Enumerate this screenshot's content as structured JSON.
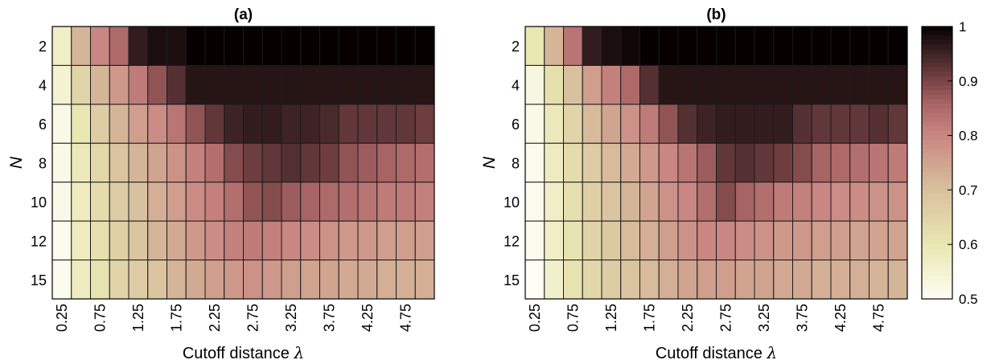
{
  "chart_data": [
    {
      "type": "heatmap",
      "title": "(a)",
      "xlabel_text": "Cutoff distance ",
      "xlabel_symbol": "λ",
      "ylabel": "N",
      "x_tick_labels": [
        "0.25",
        "0.75",
        "1.25",
        "1.75",
        "2.25",
        "2.75",
        "3.25",
        "3.75",
        "4.25",
        "4.75"
      ],
      "y_tick_labels": [
        "2",
        "4",
        "6",
        "8",
        "10",
        "12",
        "15"
      ],
      "x": [
        0.25,
        0.5,
        0.75,
        1.0,
        1.25,
        1.5,
        1.75,
        2.0,
        2.25,
        2.5,
        2.75,
        3.0,
        3.25,
        3.5,
        3.75,
        4.0,
        4.25,
        4.5,
        4.75,
        5.0
      ],
      "y": [
        2,
        4,
        6,
        8,
        10,
        12,
        15
      ],
      "z": [
        [
          0.57,
          0.72,
          0.8,
          0.85,
          0.96,
          0.98,
          0.98,
          1.0,
          1.0,
          1.0,
          1.0,
          1.0,
          1.0,
          1.0,
          1.0,
          1.0,
          1.0,
          1.0,
          1.0,
          1.0
        ],
        [
          0.55,
          0.65,
          0.72,
          0.77,
          0.82,
          0.88,
          0.93,
          0.97,
          0.97,
          0.97,
          0.97,
          0.97,
          0.97,
          0.97,
          0.97,
          0.97,
          0.97,
          0.97,
          0.97,
          0.97
        ],
        [
          0.52,
          0.6,
          0.67,
          0.72,
          0.76,
          0.79,
          0.83,
          0.88,
          0.92,
          0.95,
          0.96,
          0.96,
          0.95,
          0.95,
          0.94,
          0.92,
          0.92,
          0.92,
          0.92,
          0.91
        ],
        [
          0.52,
          0.59,
          0.64,
          0.69,
          0.72,
          0.75,
          0.78,
          0.81,
          0.84,
          0.89,
          0.91,
          0.92,
          0.93,
          0.92,
          0.91,
          0.88,
          0.87,
          0.86,
          0.85,
          0.84
        ],
        [
          0.52,
          0.58,
          0.63,
          0.67,
          0.7,
          0.73,
          0.76,
          0.79,
          0.81,
          0.84,
          0.88,
          0.89,
          0.87,
          0.86,
          0.85,
          0.84,
          0.83,
          0.82,
          0.82,
          0.81
        ],
        [
          0.51,
          0.58,
          0.62,
          0.66,
          0.69,
          0.72,
          0.74,
          0.77,
          0.79,
          0.81,
          0.82,
          0.81,
          0.8,
          0.79,
          0.78,
          0.77,
          0.77,
          0.76,
          0.76,
          0.76
        ],
        [
          0.51,
          0.58,
          0.61,
          0.65,
          0.67,
          0.69,
          0.72,
          0.74,
          0.76,
          0.77,
          0.78,
          0.77,
          0.76,
          0.75,
          0.75,
          0.74,
          0.74,
          0.73,
          0.73,
          0.73
        ]
      ]
    },
    {
      "type": "heatmap",
      "title": "(b)",
      "xlabel_text": "Cutoff distance ",
      "xlabel_symbol": "λ",
      "ylabel": "N",
      "x_tick_labels": [
        "0.25",
        "0.75",
        "1.25",
        "1.75",
        "2.25",
        "2.75",
        "3.25",
        "3.75",
        "4.25",
        "4.75"
      ],
      "y_tick_labels": [
        "2",
        "4",
        "6",
        "8",
        "10",
        "12",
        "15"
      ],
      "x": [
        0.25,
        0.5,
        0.75,
        1.0,
        1.25,
        1.5,
        1.75,
        2.0,
        2.25,
        2.5,
        2.75,
        3.0,
        3.25,
        3.5,
        3.75,
        4.0,
        4.25,
        4.5,
        4.75,
        5.0
      ],
      "y": [
        2,
        4,
        6,
        8,
        10,
        12,
        15
      ],
      "z": [
        [
          0.6,
          0.72,
          0.83,
          0.96,
          0.98,
          0.99,
          1.0,
          1.0,
          1.0,
          1.0,
          1.0,
          1.0,
          1.0,
          1.0,
          1.0,
          1.0,
          1.0,
          1.0,
          1.0,
          1.0
        ],
        [
          0.53,
          0.62,
          0.7,
          0.76,
          0.81,
          0.85,
          0.93,
          0.97,
          0.97,
          0.97,
          0.97,
          0.97,
          0.97,
          0.97,
          0.97,
          0.97,
          0.97,
          0.97,
          0.97,
          0.97
        ],
        [
          0.52,
          0.59,
          0.65,
          0.71,
          0.75,
          0.78,
          0.82,
          0.88,
          0.93,
          0.95,
          0.96,
          0.96,
          0.96,
          0.96,
          0.93,
          0.92,
          0.92,
          0.92,
          0.93,
          0.92
        ],
        [
          0.51,
          0.58,
          0.63,
          0.67,
          0.71,
          0.74,
          0.77,
          0.8,
          0.83,
          0.87,
          0.92,
          0.93,
          0.92,
          0.91,
          0.89,
          0.86,
          0.85,
          0.84,
          0.83,
          0.82
        ],
        [
          0.51,
          0.57,
          0.62,
          0.66,
          0.69,
          0.72,
          0.75,
          0.78,
          0.8,
          0.84,
          0.89,
          0.86,
          0.84,
          0.82,
          0.81,
          0.8,
          0.79,
          0.79,
          0.78,
          0.78
        ],
        [
          0.51,
          0.57,
          0.61,
          0.65,
          0.68,
          0.71,
          0.73,
          0.76,
          0.78,
          0.8,
          0.8,
          0.79,
          0.78,
          0.77,
          0.77,
          0.76,
          0.76,
          0.75,
          0.75,
          0.75
        ],
        [
          0.5,
          0.56,
          0.61,
          0.64,
          0.67,
          0.69,
          0.71,
          0.73,
          0.75,
          0.76,
          0.76,
          0.75,
          0.75,
          0.74,
          0.74,
          0.73,
          0.73,
          0.73,
          0.72,
          0.72
        ]
      ]
    }
  ],
  "colorbar": {
    "range": [
      0.5,
      1.0
    ],
    "tick_values": [
      0.5,
      0.6,
      0.7,
      0.8,
      0.9,
      1.0
    ],
    "tick_labels": [
      "0.5",
      "0.6",
      "0.7",
      "0.8",
      "0.9",
      "1"
    ],
    "colormap_stops": [
      [
        0.5,
        "#fdfdf4"
      ],
      [
        0.6,
        "#e9e7b2"
      ],
      [
        0.7,
        "#d8c19e"
      ],
      [
        0.8,
        "#c98682"
      ],
      [
        0.86,
        "#a76464"
      ],
      [
        0.9,
        "#7a4446"
      ],
      [
        0.95,
        "#3d2325"
      ],
      [
        1.0,
        "#060000"
      ]
    ]
  }
}
